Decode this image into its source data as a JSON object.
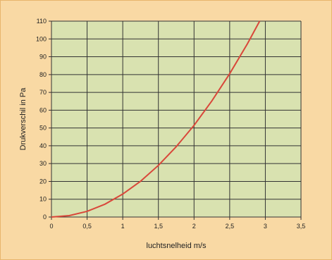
{
  "chart_data": {
    "type": "line",
    "title": "",
    "xlabel": "luchtsnelheid m/s",
    "ylabel": "Drukverschil in Pa",
    "xlim": [
      0,
      3.5
    ],
    "ylim": [
      0,
      110
    ],
    "x_ticks": [
      "0",
      "0,5",
      "1",
      "1,5",
      "2",
      "2,5",
      "3",
      "3,5"
    ],
    "y_ticks": [
      "0",
      "10",
      "20",
      "30",
      "40",
      "50",
      "60",
      "70",
      "80",
      "90",
      "100",
      "110"
    ],
    "grid": true,
    "legend": "none",
    "series": [
      {
        "x": [
          0,
          0.25,
          0.5,
          0.75,
          1,
          1.25,
          1.5,
          1.75,
          2,
          2.25,
          2.5,
          2.75,
          2.92
        ],
        "values": [
          0,
          0.8,
          3.2,
          7.2,
          12.9,
          20.1,
          29.0,
          39.5,
          51.5,
          65.2,
          80.5,
          97.4,
          110
        ]
      }
    ],
    "colors": {
      "background": "#f9d9a4",
      "plot_area": "#d9e2b0",
      "grid": "#333333",
      "line": "#d9473a"
    }
  }
}
